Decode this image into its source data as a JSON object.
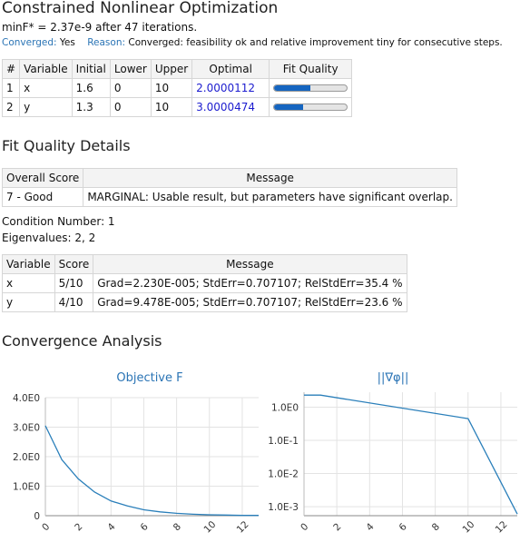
{
  "title": "Constrained Nonlinear Optimization",
  "summary": "minF* = 2.37e-9 after 47 iterations.",
  "status": {
    "converged_label": "Converged:",
    "converged_value": "Yes",
    "reason_label": "Reason:",
    "reason_value": "Converged: feasibility ok and relative improvement tiny for consecutive steps."
  },
  "params_table": {
    "headers": [
      "#",
      "Variable",
      "Initial",
      "Lower",
      "Upper",
      "Optimal",
      "Fit Quality"
    ],
    "rows": [
      {
        "num": "1",
        "variable": "x",
        "initial": "1.6",
        "lower": "0",
        "upper": "10",
        "optimal": "2.0000112",
        "fit_quality": 0.5
      },
      {
        "num": "2",
        "variable": "y",
        "initial": "1.3",
        "lower": "0",
        "upper": "10",
        "optimal": "3.0000474",
        "fit_quality": 0.4
      }
    ]
  },
  "fit_quality_heading": "Fit Quality Details",
  "quality_table": {
    "headers": [
      "Overall Score",
      "Message"
    ],
    "rows": [
      {
        "score": "7 - Good",
        "message": "MARGINAL: Usable result, but parameters have significant overlap."
      }
    ]
  },
  "condition_number": "Condition Number: 1",
  "eigenvalues": "Eigenvalues: 2, 2",
  "scores_table": {
    "headers": [
      "Variable",
      "Score",
      "Message"
    ],
    "rows": [
      {
        "variable": "x",
        "score": "5/10",
        "message": "Grad=2.230E-005; StdErr=0.707107; RelStdErr=35.4 %"
      },
      {
        "variable": "y",
        "score": "4/10",
        "message": "Grad=9.478E-005; StdErr=0.707107; RelStdErr=23.6 %"
      }
    ]
  },
  "convergence_heading": "Convergence Analysis",
  "colors": {
    "accent": "#2a74b5",
    "optimal_text": "#1c1ccf",
    "bar_fill": "#1565c0",
    "line": "#2a7fba"
  },
  "chart_data": [
    {
      "type": "line",
      "title": "Objective F",
      "x": [
        0,
        1,
        2,
        3,
        4,
        5,
        6,
        7,
        8,
        9,
        10,
        11,
        12,
        13
      ],
      "y": [
        3.05,
        1.9,
        1.25,
        0.8,
        0.5,
        0.33,
        0.2,
        0.13,
        0.08,
        0.05,
        0.03,
        0.02,
        0.01,
        0.01
      ],
      "xlim": [
        0,
        13
      ],
      "ylim": [
        0,
        4
      ],
      "yscale": "linear",
      "xticks": [
        "0",
        "2",
        "4",
        "6",
        "8",
        "10",
        "12"
      ],
      "yticks": [
        "0",
        "1.0E0",
        "2.0E0",
        "3.0E0",
        "4.0E0"
      ],
      "grid": true
    },
    {
      "type": "line",
      "title": "||∇φ||",
      "x": [
        0,
        1,
        10,
        13
      ],
      "y": [
        2.3,
        2.3,
        0.45,
        0.0006
      ],
      "xlim": [
        0,
        13
      ],
      "yscale": "log",
      "xticks": [
        "0",
        "2",
        "4",
        "6",
        "8",
        "10",
        "12"
      ],
      "yticks": [
        "1.0E-3",
        "1.0E-2",
        "1.0E-1",
        "1.0E0"
      ],
      "grid": true
    }
  ]
}
